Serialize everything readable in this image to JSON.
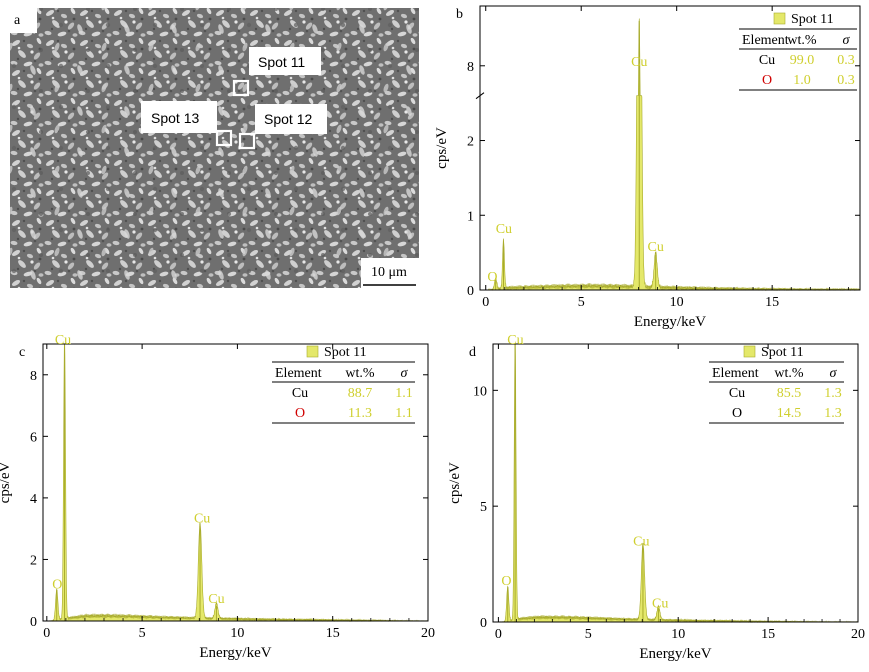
{
  "panel_a": {
    "letter": "a",
    "scale_bar": "10 μm",
    "spots": [
      "Spot 11",
      "Spot 12",
      "Spot 13"
    ]
  },
  "chart_data": [
    {
      "id": "b",
      "letter": "b",
      "type": "line",
      "title": "",
      "xlabel": "Energy/keV",
      "ylabel": "cps/eV",
      "xlim": [
        -0.3,
        19.6
      ],
      "ylim": [
        0,
        8.8
      ],
      "xticks": [
        0,
        5,
        10,
        15
      ],
      "yticks": [
        0,
        1,
        2,
        8
      ],
      "legend": "Spot 11",
      "table": {
        "headers": [
          "Element",
          "wt.%",
          "σ"
        ],
        "rows": [
          {
            "element": "Cu",
            "wt": "99.0",
            "sigma": "0.3",
            "color": "#000000"
          },
          {
            "element": "O",
            "wt": "1.0",
            "sigma": "0.3",
            "color": "#d00000"
          }
        ]
      },
      "y_breaks": [
        [
          2.6,
          7.6
        ]
      ],
      "peaks": [
        {
          "x": 0.52,
          "y": 0.15,
          "w": 0.06,
          "label": "O",
          "lx": 0.35,
          "ly": 0.12
        },
        {
          "x": 0.93,
          "y": 0.65,
          "w": 0.05,
          "label": "Cu",
          "lx": 0.95,
          "ly": 0.76
        },
        {
          "x": 8.04,
          "y": 8.6,
          "w": 0.09,
          "label": "Cu",
          "lx": 8.04,
          "ly": 8.0
        },
        {
          "x": 8.9,
          "y": 0.47,
          "w": 0.08,
          "label": "Cu",
          "lx": 8.9,
          "ly": 0.52
        }
      ],
      "background": [
        [
          0.3,
          0.0
        ],
        [
          1.2,
          0.03
        ],
        [
          2.5,
          0.04
        ],
        [
          4.0,
          0.05
        ],
        [
          5.5,
          0.055
        ],
        [
          7.0,
          0.05
        ],
        [
          8.5,
          0.04
        ],
        [
          10.0,
          0.03
        ],
        [
          12.0,
          0.02
        ],
        [
          15.0,
          0.01
        ],
        [
          17.0,
          0.005
        ]
      ]
    },
    {
      "id": "c",
      "letter": "c",
      "type": "line",
      "title": "",
      "xlabel": "Energy/keV",
      "ylabel": "cps/eV",
      "xlim": [
        -0.2,
        20
      ],
      "ylim": [
        0,
        9
      ],
      "xticks": [
        0,
        5,
        10,
        15,
        20
      ],
      "yticks": [
        0,
        2,
        4,
        6,
        8
      ],
      "legend": "Spot 11",
      "table": {
        "headers": [
          "Element",
          "wt.%",
          "σ"
        ],
        "rows": [
          {
            "element": "Cu",
            "wt": "88.7",
            "sigma": "1.1",
            "color": "#000000"
          },
          {
            "element": "O",
            "wt": "11.3",
            "sigma": "1.1",
            "color": "#d00000"
          }
        ]
      },
      "y_breaks": [],
      "peaks": [
        {
          "x": 0.52,
          "y": 1.0,
          "w": 0.06,
          "label": "O",
          "lx": 0.55,
          "ly": 1.05
        },
        {
          "x": 0.93,
          "y": 9.3,
          "w": 0.05,
          "label": "Cu",
          "lx": 0.85,
          "ly": 9.3
        },
        {
          "x": 8.04,
          "y": 3.1,
          "w": 0.09,
          "label": "Cu",
          "lx": 8.15,
          "ly": 3.2
        },
        {
          "x": 8.9,
          "y": 0.5,
          "w": 0.08,
          "label": "Cu",
          "lx": 8.9,
          "ly": 0.58
        }
      ],
      "background": [
        [
          0.2,
          0.0
        ],
        [
          1.2,
          0.1
        ],
        [
          2.0,
          0.16
        ],
        [
          3.0,
          0.17
        ],
        [
          4.5,
          0.15
        ],
        [
          6.0,
          0.12
        ],
        [
          8.0,
          0.09
        ],
        [
          10.0,
          0.07
        ],
        [
          12.0,
          0.05
        ],
        [
          15.0,
          0.03
        ],
        [
          18.0,
          0.01
        ],
        [
          19.5,
          0.0
        ]
      ]
    },
    {
      "id": "d",
      "letter": "d",
      "type": "line",
      "title": "",
      "xlabel": "Energy/keV",
      "ylabel": "cps/eV",
      "xlim": [
        -0.3,
        20
      ],
      "ylim": [
        0,
        12
      ],
      "xticks": [
        0,
        5,
        10,
        15,
        20
      ],
      "yticks": [
        0,
        5,
        10
      ],
      "legend": "Spot 11",
      "table": {
        "headers": [
          "Element",
          "wt.%",
          "σ"
        ],
        "rows": [
          {
            "element": "Cu",
            "wt": "85.5",
            "sigma": "1.3",
            "color": "#000000"
          },
          {
            "element": "O",
            "wt": "14.5",
            "sigma": "1.3",
            "color": "#000000"
          }
        ]
      },
      "y_breaks": [],
      "peaks": [
        {
          "x": 0.52,
          "y": 1.5,
          "w": 0.06,
          "label": "O",
          "lx": 0.45,
          "ly": 1.6
        },
        {
          "x": 0.93,
          "y": 12.3,
          "w": 0.05,
          "label": "Cu",
          "lx": 0.95,
          "ly": 12.1
        },
        {
          "x": 8.04,
          "y": 3.3,
          "w": 0.09,
          "label": "Cu",
          "lx": 7.95,
          "ly": 3.3
        },
        {
          "x": 8.9,
          "y": 0.6,
          "w": 0.08,
          "label": "Cu",
          "lx": 9.0,
          "ly": 0.62
        }
      ],
      "background": [
        [
          0.3,
          0.0
        ],
        [
          1.3,
          0.15
        ],
        [
          2.2,
          0.2
        ],
        [
          3.5,
          0.2
        ],
        [
          5.0,
          0.17
        ],
        [
          7.0,
          0.12
        ],
        [
          9.0,
          0.09
        ],
        [
          11.0,
          0.06
        ],
        [
          14.0,
          0.03
        ],
        [
          17.0,
          0.01
        ],
        [
          19.0,
          0.0
        ]
      ]
    }
  ]
}
